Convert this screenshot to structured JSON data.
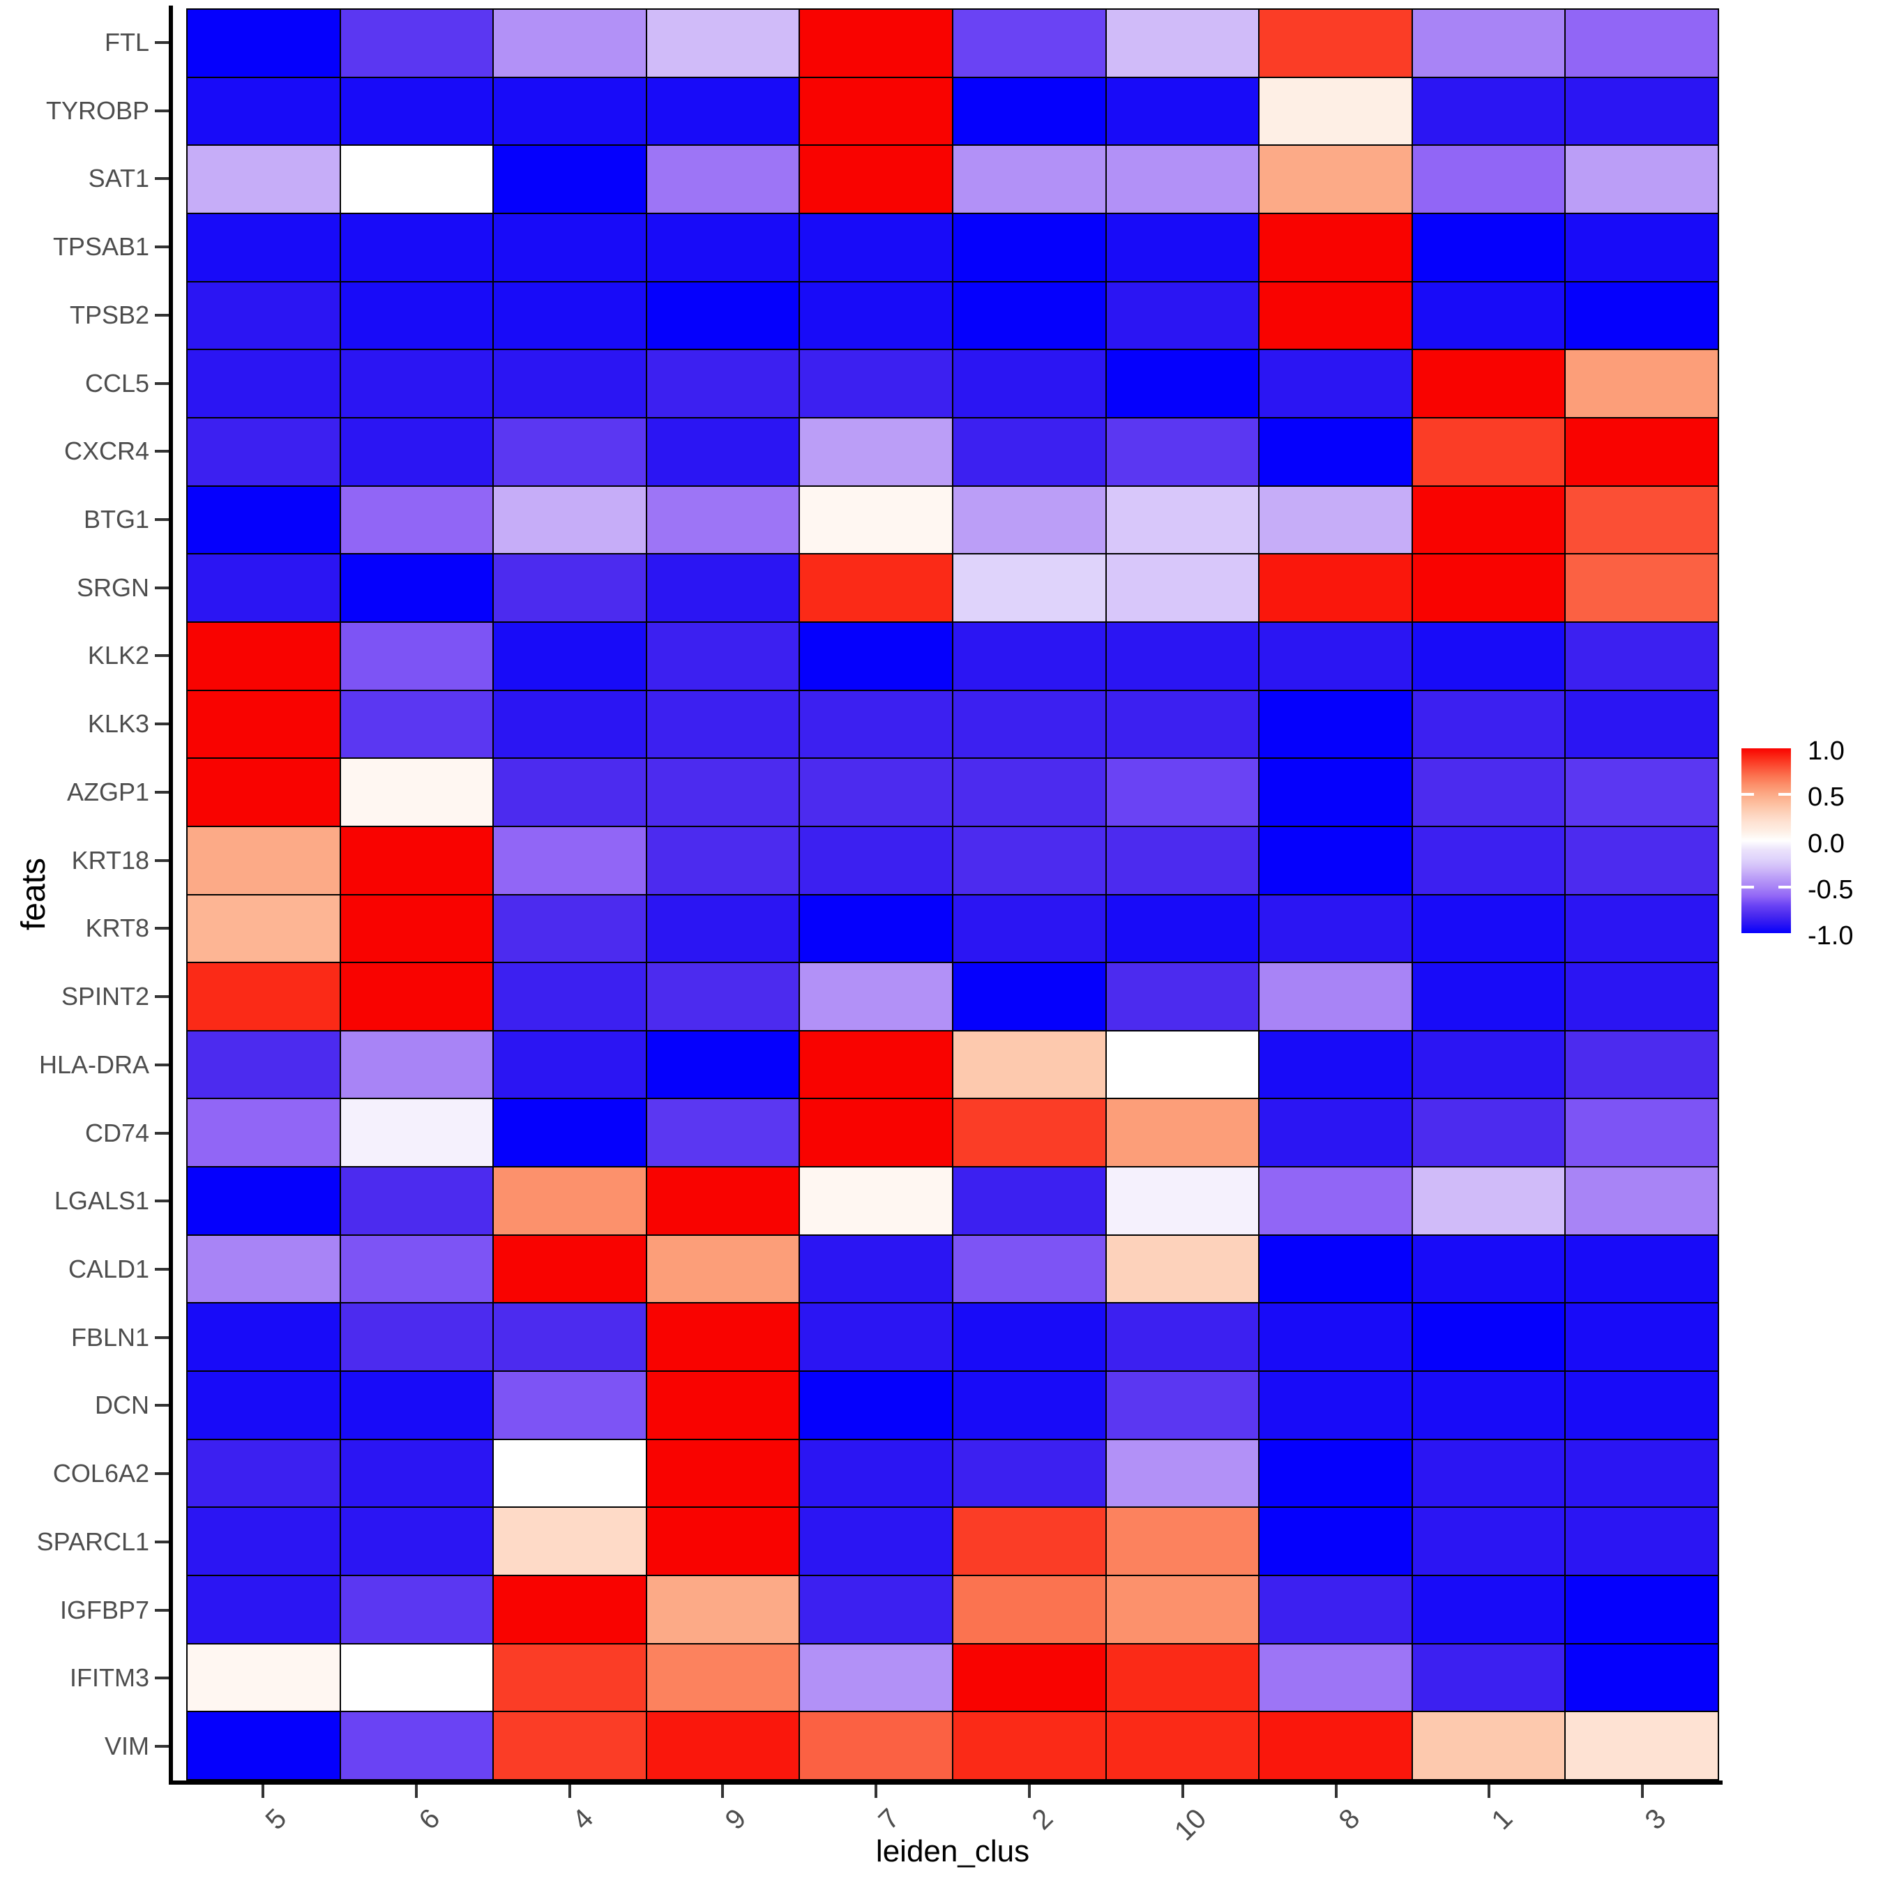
{
  "chart_data": {
    "type": "heatmap",
    "xlabel": "leiden_clus",
    "ylabel": "feats",
    "grid": "off",
    "legend_position": "right",
    "columns": [
      "5",
      "6",
      "4",
      "9",
      "7",
      "2",
      "10",
      "8",
      "1",
      "3"
    ],
    "rows": [
      "FTL",
      "TYROBP",
      "SAT1",
      "TPSAB1",
      "TPSB2",
      "CCL5",
      "CXCR4",
      "BTG1",
      "SRGN",
      "KLK2",
      "KLK3",
      "AZGP1",
      "KRT18",
      "KRT8",
      "SPINT2",
      "HLA-DRA",
      "CD74",
      "LGALS1",
      "CALD1",
      "FBLN1",
      "DCN",
      "COL6A2",
      "SPARCL1",
      "IGFBP7",
      "IFITM3",
      "VIM"
    ],
    "values": [
      [
        -1.0,
        -0.75,
        -0.45,
        -0.3,
        1.0,
        -0.7,
        -0.3,
        0.85,
        -0.5,
        -0.6
      ],
      [
        -0.95,
        -0.95,
        -0.95,
        -0.95,
        1.0,
        -1.0,
        -0.95,
        0.1,
        -0.9,
        -0.9
      ],
      [
        -0.35,
        0.0,
        -1.0,
        -0.55,
        1.0,
        -0.45,
        -0.45,
        0.5,
        -0.6,
        -0.4
      ],
      [
        -0.95,
        -0.95,
        -0.95,
        -0.95,
        -0.95,
        -1.0,
        -0.95,
        1.0,
        -1.0,
        -0.95
      ],
      [
        -0.9,
        -0.95,
        -0.95,
        -1.0,
        -0.95,
        -1.0,
        -0.9,
        1.0,
        -0.95,
        -1.0
      ],
      [
        -0.9,
        -0.9,
        -0.9,
        -0.85,
        -0.85,
        -0.9,
        -1.0,
        -0.9,
        1.0,
        0.55
      ],
      [
        -0.85,
        -0.9,
        -0.75,
        -0.9,
        -0.4,
        -0.85,
        -0.75,
        -1.0,
        0.85,
        1.0
      ],
      [
        -1.0,
        -0.6,
        -0.35,
        -0.55,
        0.05,
        -0.4,
        -0.25,
        -0.35,
        1.0,
        0.8
      ],
      [
        -0.9,
        -1.0,
        -0.8,
        -0.9,
        0.9,
        -0.2,
        -0.25,
        0.95,
        1.0,
        0.75
      ],
      [
        1.0,
        -0.65,
        -0.95,
        -0.85,
        -1.0,
        -0.9,
        -0.9,
        -0.9,
        -0.95,
        -0.85
      ],
      [
        1.0,
        -0.75,
        -0.9,
        -0.85,
        -0.85,
        -0.85,
        -0.85,
        -1.0,
        -0.85,
        -0.9
      ],
      [
        1.0,
        0.05,
        -0.8,
        -0.8,
        -0.8,
        -0.8,
        -0.7,
        -1.0,
        -0.8,
        -0.75
      ],
      [
        0.5,
        1.0,
        -0.6,
        -0.8,
        -0.85,
        -0.8,
        -0.8,
        -1.0,
        -0.85,
        -0.8
      ],
      [
        0.45,
        1.0,
        -0.8,
        -0.9,
        -1.0,
        -0.9,
        -0.95,
        -0.9,
        -0.95,
        -0.9
      ],
      [
        0.9,
        1.0,
        -0.85,
        -0.8,
        -0.45,
        -1.0,
        -0.8,
        -0.5,
        -0.95,
        -0.9
      ],
      [
        -0.8,
        -0.5,
        -0.9,
        -1.0,
        1.0,
        0.35,
        0.0,
        -0.95,
        -0.9,
        -0.8
      ],
      [
        -0.6,
        -0.05,
        -1.0,
        -0.75,
        1.0,
        0.85,
        0.55,
        -0.9,
        -0.8,
        -0.65
      ],
      [
        -1.0,
        -0.8,
        0.6,
        1.0,
        0.05,
        -0.85,
        -0.05,
        -0.6,
        -0.3,
        -0.5
      ],
      [
        -0.5,
        -0.65,
        1.0,
        0.55,
        -0.9,
        -0.65,
        0.3,
        -1.0,
        -0.95,
        -0.95
      ],
      [
        -0.95,
        -0.8,
        -0.8,
        1.0,
        -0.9,
        -0.95,
        -0.85,
        -0.95,
        -1.0,
        -0.95
      ],
      [
        -0.95,
        -0.95,
        -0.65,
        1.0,
        -1.0,
        -0.95,
        -0.75,
        -0.95,
        -0.95,
        -0.95
      ],
      [
        -0.85,
        -0.9,
        0.0,
        1.0,
        -0.9,
        -0.85,
        -0.45,
        -1.0,
        -0.9,
        -0.9
      ],
      [
        -0.9,
        -0.9,
        0.25,
        1.0,
        -0.9,
        0.85,
        0.65,
        -1.0,
        -0.9,
        -0.9
      ],
      [
        -0.9,
        -0.75,
        1.0,
        0.5,
        -0.85,
        0.7,
        0.6,
        -0.85,
        -0.95,
        -1.0
      ],
      [
        0.05,
        0.0,
        0.85,
        0.65,
        -0.45,
        1.0,
        0.9,
        -0.55,
        -0.85,
        -1.0
      ],
      [
        -1.0,
        -0.7,
        0.85,
        0.95,
        0.75,
        0.9,
        0.9,
        0.95,
        0.35,
        0.2
      ]
    ],
    "colorscale": {
      "low_color": "#0500FD",
      "mid_color": "#FFFFFF",
      "high_color": "#F90300",
      "domain": [
        -1,
        0,
        1
      ]
    },
    "legend": {
      "ticks": [
        "1.0",
        "0.5",
        "0.0",
        "-0.5",
        "-1.0"
      ]
    }
  }
}
